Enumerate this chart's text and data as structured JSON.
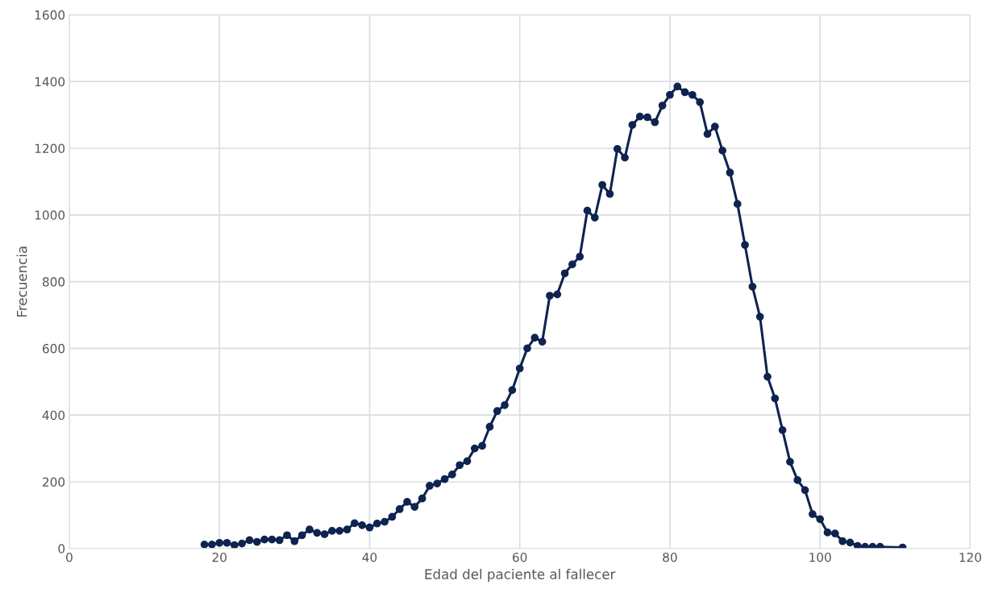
{
  "chart_data": {
    "type": "line",
    "xlabel": "Edad del paciente al fallecer",
    "ylabel": "Frecuencia",
    "x": [
      18,
      19,
      20,
      21,
      22,
      23,
      24,
      25,
      26,
      27,
      28,
      29,
      30,
      31,
      32,
      33,
      34,
      35,
      36,
      37,
      38,
      39,
      40,
      41,
      42,
      43,
      44,
      45,
      46,
      47,
      48,
      49,
      50,
      51,
      52,
      53,
      54,
      55,
      56,
      57,
      58,
      59,
      60,
      61,
      62,
      63,
      64,
      65,
      66,
      67,
      68,
      69,
      70,
      71,
      72,
      73,
      74,
      75,
      76,
      77,
      78,
      79,
      80,
      81,
      82,
      83,
      84,
      85,
      86,
      87,
      88,
      89,
      90,
      91,
      92,
      93,
      94,
      95,
      96,
      97,
      98,
      99,
      100,
      101,
      102,
      103,
      104,
      105,
      106,
      107,
      108,
      111
    ],
    "series": [
      {
        "color": "#0e2350",
        "values": [
          12,
          12,
          17,
          17,
          10,
          15,
          25,
          20,
          27,
          27,
          25,
          40,
          22,
          40,
          57,
          47,
          43,
          53,
          53,
          57,
          76,
          70,
          63,
          75,
          80,
          95,
          118,
          140,
          125,
          150,
          188,
          195,
          208,
          222,
          250,
          262,
          300,
          308,
          365,
          412,
          430,
          475,
          540,
          600,
          632,
          620,
          758,
          762,
          825,
          852,
          875,
          1013,
          992,
          1090,
          1063,
          1198,
          1172,
          1270,
          1295,
          1293,
          1278,
          1328,
          1360,
          1385,
          1368,
          1360,
          1338,
          1243,
          1265,
          1193,
          1127,
          1033,
          910,
          785,
          695,
          515,
          450,
          355,
          260,
          205,
          175,
          103,
          88,
          48,
          45,
          22,
          18,
          8,
          5,
          5,
          5,
          3
        ]
      }
    ],
    "xlim": [
      0,
      120
    ],
    "xticks": [
      0,
      20,
      40,
      60,
      80,
      100,
      120
    ],
    "ylim": [
      0,
      1600
    ],
    "yticks": [
      0,
      200,
      400,
      600,
      800,
      1000,
      1200,
      1400,
      1600
    ],
    "grid": true,
    "marker": "circle",
    "line_style": "solid"
  }
}
